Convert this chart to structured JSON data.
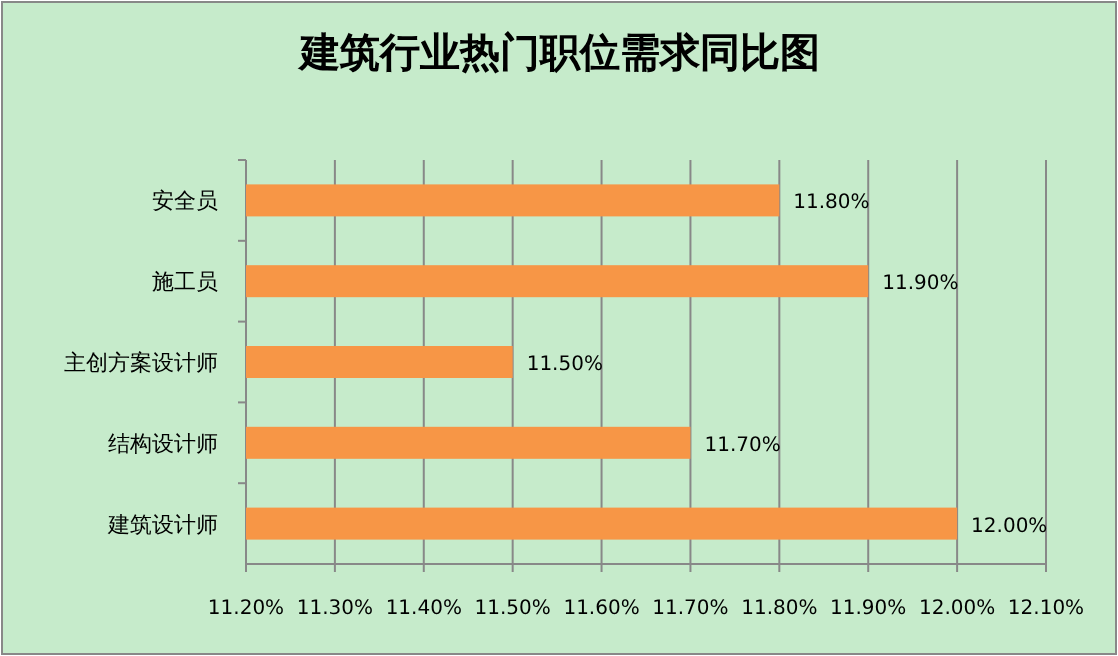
{
  "chart_data": {
    "type": "bar",
    "orientation": "horizontal",
    "title": "建筑行业热门职位需求同比图",
    "categories": [
      "安全员",
      "施工员",
      "主创方案设计师",
      "结构设计师",
      "建筑设计师"
    ],
    "values": [
      11.8,
      11.9,
      11.5,
      11.7,
      12.0
    ],
    "value_labels": [
      "11.80%",
      "11.90%",
      "11.50%",
      "11.70%",
      "12.00%"
    ],
    "color": "#f79646",
    "xlim": [
      11.2,
      12.1
    ],
    "xticks": [
      {
        "value": 11.2,
        "label": "11.20%"
      },
      {
        "value": 11.3,
        "label": "11.30%"
      },
      {
        "value": 11.4,
        "label": "11.40%"
      },
      {
        "value": 11.5,
        "label": "11.50%"
      },
      {
        "value": 11.6,
        "label": "11.60%"
      },
      {
        "value": 11.7,
        "label": "11.70%"
      },
      {
        "value": 11.8,
        "label": "11.80%"
      },
      {
        "value": 11.9,
        "label": "11.90%"
      },
      {
        "value": 12.0,
        "label": "12.00%"
      },
      {
        "value": 12.1,
        "label": "12.10%"
      }
    ],
    "grid": "x"
  }
}
